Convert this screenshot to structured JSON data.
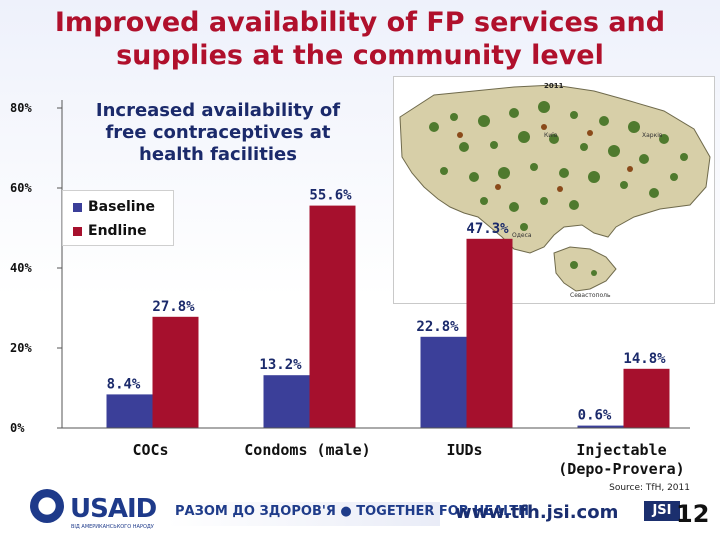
{
  "slide": {
    "title_line1": "Improved availability of FP services and",
    "title_line2": "supplies at the community level",
    "map_year": "2011",
    "map_labels": [
      "Київ",
      "Харків",
      "Одеса",
      "Севастополь"
    ]
  },
  "footer": {
    "source": "Source: TfH, 2011",
    "url": "www.tfh.jsi.com",
    "page_number": "12",
    "usaid_wordmark": "USAID",
    "usaid_tagline": "ВІД АМЕРИКАНСЬКОГО НАРОДУ",
    "tfh_banner": "РАЗОМ ДО ЗДОРОВ'Я ● TOGETHER FOR HEALTH",
    "jsi_logo": "JSI"
  },
  "chart_data": {
    "type": "bar",
    "title": "Increased availability of\nfree contraceptives at\nhealth facilities",
    "title_lines": [
      "Increased availability of",
      "free contraceptives at",
      "health facilities"
    ],
    "categories": [
      "COCs",
      "Condoms (male)",
      "IUDs",
      "Injectable\n(Depo-Provera)"
    ],
    "category_lines": [
      [
        "COCs"
      ],
      [
        "Condoms (male)"
      ],
      [
        "IUDs"
      ],
      [
        "Injectable",
        "(Depo-Provera)"
      ]
    ],
    "series": [
      {
        "name": "Baseline",
        "values": [
          8.4,
          13.2,
          22.8,
          0.6
        ],
        "color": "#3b3f99"
      },
      {
        "name": "Endline",
        "values": [
          27.8,
          55.6,
          47.3,
          14.8
        ],
        "color": "#a6102d"
      }
    ],
    "data_labels": [
      [
        "8.4%",
        "13.2%",
        "22.8%",
        "0.6%"
      ],
      [
        "27.8%",
        "55.6%",
        "47.3%",
        "14.8%"
      ]
    ],
    "y_ticks": [
      "0%",
      "20%",
      "40%",
      "60%",
      "80%"
    ],
    "y_tick_values": [
      0,
      20,
      40,
      60,
      80
    ],
    "ylim": [
      0,
      80
    ],
    "legend_position": "top-left"
  }
}
